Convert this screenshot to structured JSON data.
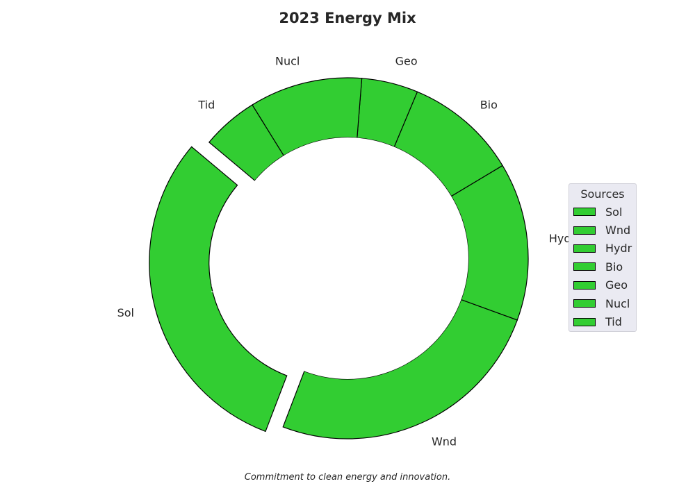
{
  "chart_data": {
    "type": "pie",
    "variant": "donut",
    "title": "2023 Energy Mix",
    "caption": "Commitment to clean energy and innovation.",
    "categories": [
      "Sol",
      "Wnd",
      "Hydr",
      "Bio",
      "Geo",
      "Nucl",
      "Tid"
    ],
    "values": [
      30.0,
      25.0,
      14.0,
      10.0,
      5.0,
      10.0,
      5.0
    ],
    "percent_labels": [
      "30.0%",
      "",
      "",
      "",
      "",
      "",
      ""
    ],
    "exploded": [
      "Sol"
    ],
    "slice_color": "#32cd32",
    "edge_color": "#000000",
    "legend": {
      "title": "Sources",
      "position": "right"
    }
  }
}
